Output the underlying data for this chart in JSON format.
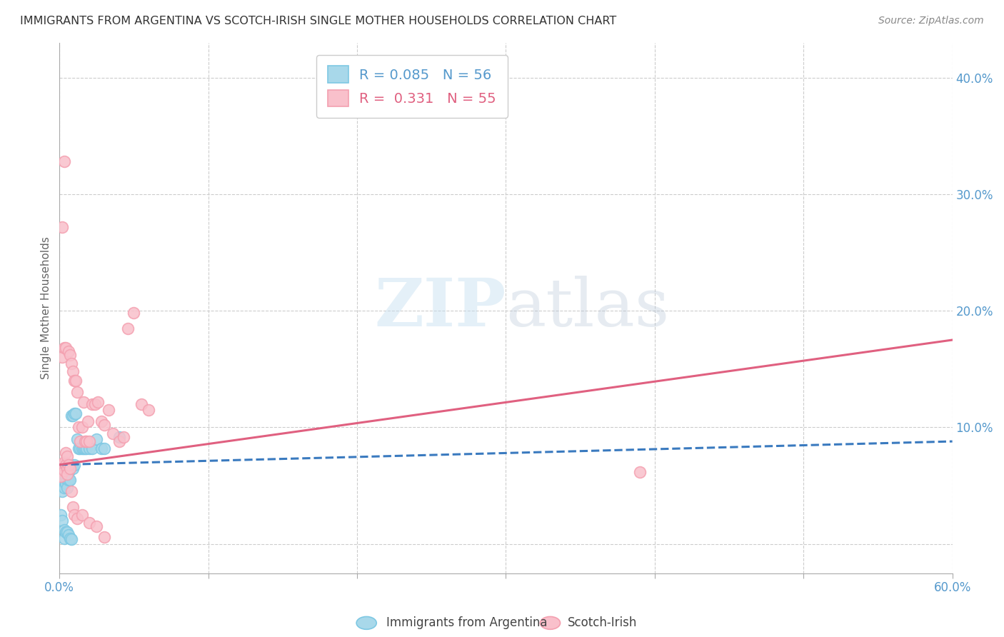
{
  "title": "IMMIGRANTS FROM ARGENTINA VS SCOTCH-IRISH SINGLE MOTHER HOUSEHOLDS CORRELATION CHART",
  "source": "Source: ZipAtlas.com",
  "ylabel": "Single Mother Households",
  "right_yticks": [
    0.0,
    0.1,
    0.2,
    0.3,
    0.4
  ],
  "right_yticklabels": [
    "",
    "10.0%",
    "20.0%",
    "30.0%",
    "40.0%"
  ],
  "xlim": [
    0.0,
    0.6
  ],
  "ylim": [
    -0.025,
    0.43
  ],
  "blue_scatter_x": [
    0.001,
    0.001,
    0.001,
    0.001,
    0.002,
    0.002,
    0.002,
    0.002,
    0.002,
    0.003,
    0.003,
    0.003,
    0.003,
    0.003,
    0.004,
    0.004,
    0.004,
    0.004,
    0.005,
    0.005,
    0.005,
    0.005,
    0.006,
    0.006,
    0.006,
    0.007,
    0.007,
    0.008,
    0.008,
    0.009,
    0.009,
    0.01,
    0.01,
    0.011,
    0.012,
    0.013,
    0.014,
    0.015,
    0.016,
    0.017,
    0.018,
    0.02,
    0.022,
    0.025,
    0.028,
    0.03,
    0.001,
    0.002,
    0.003,
    0.003,
    0.004,
    0.005,
    0.006,
    0.007,
    0.008,
    0.04
  ],
  "blue_scatter_y": [
    0.065,
    0.06,
    0.055,
    0.05,
    0.068,
    0.063,
    0.058,
    0.052,
    0.045,
    0.068,
    0.062,
    0.058,
    0.053,
    0.048,
    0.068,
    0.062,
    0.058,
    0.052,
    0.068,
    0.062,
    0.055,
    0.048,
    0.068,
    0.062,
    0.055,
    0.068,
    0.055,
    0.11,
    0.068,
    0.11,
    0.065,
    0.112,
    0.068,
    0.112,
    0.09,
    0.082,
    0.082,
    0.082,
    0.082,
    0.082,
    0.082,
    0.082,
    0.082,
    0.09,
    0.082,
    0.082,
    0.025,
    0.02,
    0.012,
    0.005,
    0.01,
    0.01,
    0.008,
    0.005,
    0.004,
    0.092
  ],
  "pink_scatter_x": [
    0.001,
    0.001,
    0.001,
    0.002,
    0.002,
    0.003,
    0.003,
    0.003,
    0.004,
    0.004,
    0.005,
    0.005,
    0.006,
    0.007,
    0.008,
    0.009,
    0.01,
    0.011,
    0.012,
    0.013,
    0.014,
    0.015,
    0.016,
    0.017,
    0.018,
    0.019,
    0.02,
    0.022,
    0.024,
    0.026,
    0.028,
    0.03,
    0.033,
    0.036,
    0.04,
    0.043,
    0.046,
    0.05,
    0.055,
    0.06,
    0.002,
    0.003,
    0.004,
    0.005,
    0.006,
    0.007,
    0.008,
    0.009,
    0.01,
    0.012,
    0.015,
    0.02,
    0.025,
    0.03,
    0.39
  ],
  "pink_scatter_y": [
    0.068,
    0.063,
    0.058,
    0.068,
    0.16,
    0.07,
    0.168,
    0.063,
    0.068,
    0.168,
    0.065,
    0.06,
    0.165,
    0.162,
    0.155,
    0.148,
    0.14,
    0.14,
    0.13,
    0.1,
    0.088,
    0.1,
    0.122,
    0.088,
    0.088,
    0.105,
    0.088,
    0.12,
    0.12,
    0.122,
    0.105,
    0.102,
    0.115,
    0.095,
    0.088,
    0.092,
    0.185,
    0.198,
    0.12,
    0.115,
    0.272,
    0.328,
    0.078,
    0.075,
    0.068,
    0.065,
    0.045,
    0.032,
    0.025,
    0.022,
    0.025,
    0.018,
    0.015,
    0.006,
    0.062
  ],
  "blue_line_x": [
    0.0,
    0.6
  ],
  "blue_line_y": [
    0.068,
    0.088
  ],
  "pink_line_x": [
    0.0,
    0.6
  ],
  "pink_line_y": [
    0.068,
    0.175
  ],
  "scatter_size": 130,
  "blue_fill": "#a8d8ea",
  "blue_edge": "#7ec8e3",
  "pink_fill": "#f9c0cb",
  "pink_edge": "#f4a0b0",
  "blue_line_color": "#3a7abf",
  "pink_line_color": "#e06080",
  "grid_color": "#cccccc",
  "axis_color": "#5599cc",
  "watermark_zip": "ZIP",
  "watermark_atlas": "atlas",
  "legend_label_blue": "R = 0.085   N = 56",
  "legend_label_pink": "R =  0.331   N = 55",
  "legend_color_blue": "#5599cc",
  "legend_color_pink": "#e06080"
}
